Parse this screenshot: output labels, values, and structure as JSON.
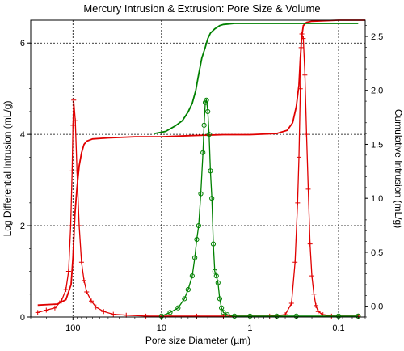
{
  "chart_data": {
    "type": "line",
    "title": "Mercury Intrusion & Extrusion: Pore Size & Volume",
    "xlabel": "Pore size Diameter (µm)",
    "ylabel_left": "Log Differential Intrusion (mL/g)",
    "ylabel_right": "Cumulative Intrusion (mL/g)",
    "x_scale": "log",
    "x_reversed": true,
    "xlim": [
      300,
      0.05
    ],
    "ylim_left": [
      0,
      6.5
    ],
    "ylim_right": [
      -0.1,
      2.65
    ],
    "x_ticks": [
      {
        "value": 100,
        "label": "100"
      },
      {
        "value": 10,
        "label": "10"
      },
      {
        "value": 1,
        "label": "1"
      },
      {
        "value": 0.1,
        "label": "0.1"
      }
    ],
    "y_ticks_left": [
      {
        "value": 0,
        "label": "0"
      },
      {
        "value": 2,
        "label": "2"
      },
      {
        "value": 4,
        "label": "4"
      },
      {
        "value": 6,
        "label": "6"
      }
    ],
    "y_ticks_right": [
      {
        "value": 0.0,
        "label": "0.0"
      },
      {
        "value": 0.5,
        "label": "0.5"
      },
      {
        "value": 1.0,
        "label": "1.0"
      },
      {
        "value": 1.5,
        "label": "1.5"
      },
      {
        "value": 2.0,
        "label": "2.0"
      },
      {
        "value": 2.5,
        "label": "2.5"
      }
    ],
    "grid": true,
    "colors": {
      "intrusion": "#e00000",
      "extrusion": "#008000"
    },
    "series": [
      {
        "axis": "left",
        "color": "#e00000",
        "marker": "plus",
        "points": [
          [
            250,
            0.1
          ],
          [
            200,
            0.15
          ],
          [
            160,
            0.2
          ],
          [
            135,
            0.35
          ],
          [
            120,
            0.6
          ],
          [
            112,
            1.0
          ],
          [
            106,
            2.0
          ],
          [
            102,
            3.2
          ],
          [
            100,
            4.2
          ],
          [
            98,
            4.75
          ],
          [
            94,
            4.3
          ],
          [
            90,
            3.2
          ],
          [
            85,
            2.0
          ],
          [
            80,
            1.2
          ],
          [
            75,
            0.8
          ],
          [
            70,
            0.55
          ],
          [
            62,
            0.35
          ],
          [
            55,
            0.22
          ],
          [
            45,
            0.12
          ],
          [
            35,
            0.06
          ],
          [
            25,
            0.04
          ],
          [
            15,
            0.02
          ],
          [
            8,
            0.02
          ],
          [
            4,
            0.02
          ],
          [
            2,
            0.02
          ],
          [
            1,
            0.02
          ],
          [
            0.6,
            0.02
          ],
          [
            0.4,
            0.05
          ],
          [
            0.34,
            0.3
          ],
          [
            0.31,
            1.2
          ],
          [
            0.29,
            2.5
          ],
          [
            0.28,
            3.5
          ],
          [
            0.27,
            5.0
          ],
          [
            0.265,
            5.9
          ],
          [
            0.26,
            6.2
          ],
          [
            0.25,
            6.1
          ],
          [
            0.24,
            5.3
          ],
          [
            0.23,
            4.0
          ],
          [
            0.22,
            2.8
          ],
          [
            0.21,
            1.6
          ],
          [
            0.2,
            0.9
          ],
          [
            0.19,
            0.5
          ],
          [
            0.18,
            0.25
          ],
          [
            0.17,
            0.12
          ],
          [
            0.15,
            0.05
          ],
          [
            0.12,
            0.02
          ],
          [
            0.06,
            0.02
          ]
        ]
      },
      {
        "axis": "right",
        "color": "#e00000",
        "marker": "none",
        "points": [
          [
            250,
            0.01
          ],
          [
            150,
            0.02
          ],
          [
            120,
            0.06
          ],
          [
            105,
            0.2
          ],
          [
            100,
            0.45
          ],
          [
            95,
            0.85
          ],
          [
            90,
            1.1
          ],
          [
            85,
            1.3
          ],
          [
            80,
            1.42
          ],
          [
            75,
            1.5
          ],
          [
            70,
            1.53
          ],
          [
            60,
            1.55
          ],
          [
            40,
            1.56
          ],
          [
            20,
            1.57
          ],
          [
            10,
            1.57
          ],
          [
            5,
            1.58
          ],
          [
            2,
            1.59
          ],
          [
            1,
            1.59
          ],
          [
            0.5,
            1.6
          ],
          [
            0.38,
            1.63
          ],
          [
            0.33,
            1.7
          ],
          [
            0.3,
            1.85
          ],
          [
            0.28,
            2.05
          ],
          [
            0.27,
            2.3
          ],
          [
            0.26,
            2.5
          ],
          [
            0.25,
            2.6
          ],
          [
            0.23,
            2.63
          ],
          [
            0.2,
            2.64
          ],
          [
            0.1,
            2.65
          ],
          [
            0.05,
            2.65
          ]
        ]
      },
      {
        "axis": "left",
        "color": "#008000",
        "marker": "circle",
        "points": [
          [
            10,
            0.02
          ],
          [
            8,
            0.1
          ],
          [
            6.5,
            0.2
          ],
          [
            5.5,
            0.4
          ],
          [
            5,
            0.6
          ],
          [
            4.5,
            0.9
          ],
          [
            4.2,
            1.3
          ],
          [
            4,
            1.7
          ],
          [
            3.8,
            2.0
          ],
          [
            3.6,
            2.7
          ],
          [
            3.4,
            3.6
          ],
          [
            3.3,
            4.2
          ],
          [
            3.2,
            4.7
          ],
          [
            3.1,
            4.75
          ],
          [
            3.0,
            4.5
          ],
          [
            2.9,
            4.0
          ],
          [
            2.8,
            3.2
          ],
          [
            2.7,
            2.6
          ],
          [
            2.6,
            1.6
          ],
          [
            2.5,
            1.0
          ],
          [
            2.4,
            0.9
          ],
          [
            2.3,
            0.75
          ],
          [
            2.2,
            0.4
          ],
          [
            2.1,
            0.2
          ],
          [
            2.0,
            0.1
          ],
          [
            1.8,
            0.05
          ],
          [
            1.5,
            0.02
          ],
          [
            1,
            0.02
          ],
          [
            0.5,
            0.02
          ],
          [
            0.3,
            0.02
          ],
          [
            0.1,
            0.02
          ],
          [
            0.06,
            0.02
          ]
        ]
      },
      {
        "axis": "right",
        "color": "#008000",
        "marker": "none",
        "points": [
          [
            12,
            1.6
          ],
          [
            9,
            1.62
          ],
          [
            7,
            1.67
          ],
          [
            5.8,
            1.72
          ],
          [
            5,
            1.8
          ],
          [
            4.5,
            1.88
          ],
          [
            4.1,
            2.0
          ],
          [
            3.8,
            2.15
          ],
          [
            3.5,
            2.3
          ],
          [
            3.2,
            2.4
          ],
          [
            3.0,
            2.48
          ],
          [
            2.8,
            2.53
          ],
          [
            2.5,
            2.57
          ],
          [
            2.2,
            2.6
          ],
          [
            2.0,
            2.61
          ],
          [
            1.5,
            2.62
          ],
          [
            1,
            2.62
          ],
          [
            0.3,
            2.62
          ],
          [
            0.06,
            2.62
          ]
        ]
      }
    ]
  }
}
